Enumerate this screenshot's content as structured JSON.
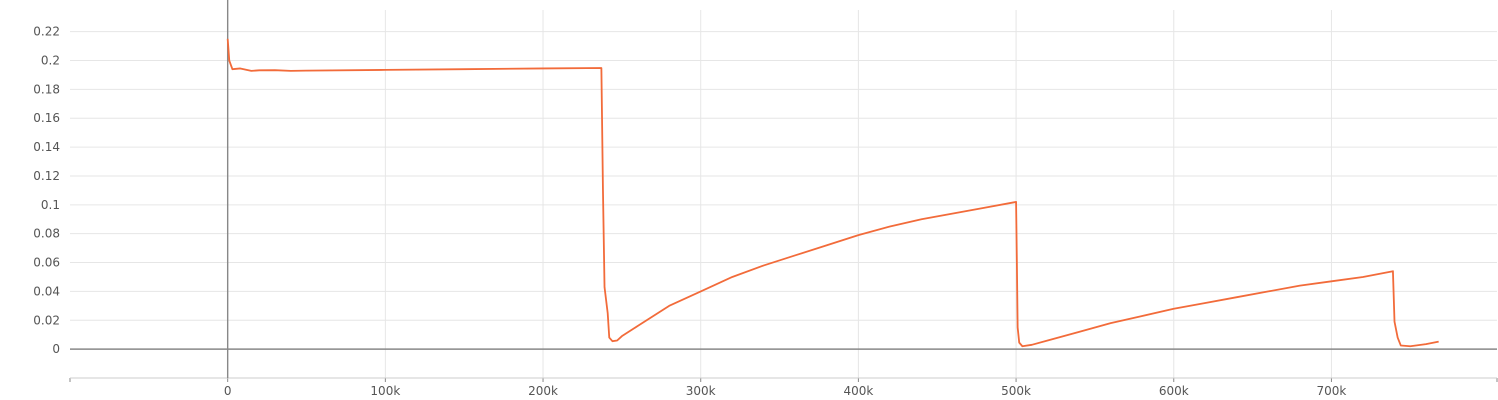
{
  "chart_data": {
    "type": "line",
    "title": "",
    "xlabel": "",
    "ylabel": "",
    "xlim": [
      -100000,
      805000
    ],
    "ylim": [
      -0.02,
      0.235
    ],
    "grid": true,
    "x_ticks": [
      {
        "value": 0,
        "label": "0"
      },
      {
        "value": 100000,
        "label": "100k"
      },
      {
        "value": 200000,
        "label": "200k"
      },
      {
        "value": 300000,
        "label": "300k"
      },
      {
        "value": 400000,
        "label": "400k"
      },
      {
        "value": 500000,
        "label": "500k"
      },
      {
        "value": 600000,
        "label": "600k"
      },
      {
        "value": 700000,
        "label": "700k"
      }
    ],
    "y_ticks": [
      {
        "value": 0,
        "label": "0"
      },
      {
        "value": 0.02,
        "label": "0.02"
      },
      {
        "value": 0.04,
        "label": "0.04"
      },
      {
        "value": 0.06,
        "label": "0.06"
      },
      {
        "value": 0.08,
        "label": "0.08"
      },
      {
        "value": 0.1,
        "label": "0.1"
      },
      {
        "value": 0.12,
        "label": "0.12"
      },
      {
        "value": 0.14,
        "label": "0.14"
      },
      {
        "value": 0.16,
        "label": "0.16"
      },
      {
        "value": 0.18,
        "label": "0.18"
      },
      {
        "value": 0.2,
        "label": "0.2"
      },
      {
        "value": 0.22,
        "label": "0.22"
      }
    ],
    "colors": {
      "line": "#f26b3a",
      "axis": "#888888",
      "grid": "#e6e6e6",
      "text": "#555555"
    },
    "series": [
      {
        "x": [
          0,
          1000,
          3000,
          8000,
          15000,
          20000,
          30000,
          40000,
          50000,
          100000,
          150000,
          200000,
          237000,
          238000,
          239000,
          241000,
          242000,
          244000,
          247000,
          250000,
          260000,
          280000,
          300000,
          320000,
          340000,
          360000,
          380000,
          400000,
          420000,
          440000,
          460000,
          480000,
          500000,
          500500,
          501000,
          502000,
          504000,
          510000,
          520000,
          540000,
          560000,
          580000,
          600000,
          620000,
          640000,
          660000,
          680000,
          700000,
          720000,
          739000,
          740000,
          742000,
          744000,
          750000,
          760000,
          768000
        ],
        "y": [
          0.215,
          0.2,
          0.194,
          0.1945,
          0.1928,
          0.1932,
          0.1933,
          0.1928,
          0.193,
          0.1935,
          0.194,
          0.1945,
          0.1948,
          0.11,
          0.043,
          0.025,
          0.008,
          0.0055,
          0.006,
          0.009,
          0.016,
          0.03,
          0.04,
          0.05,
          0.058,
          0.065,
          0.072,
          0.079,
          0.085,
          0.09,
          0.094,
          0.098,
          0.102,
          0.06,
          0.015,
          0.0045,
          0.002,
          0.003,
          0.006,
          0.012,
          0.018,
          0.023,
          0.028,
          0.032,
          0.036,
          0.04,
          0.044,
          0.047,
          0.05,
          0.054,
          0.019,
          0.008,
          0.0025,
          0.002,
          0.0035,
          0.0052
        ]
      }
    ]
  }
}
